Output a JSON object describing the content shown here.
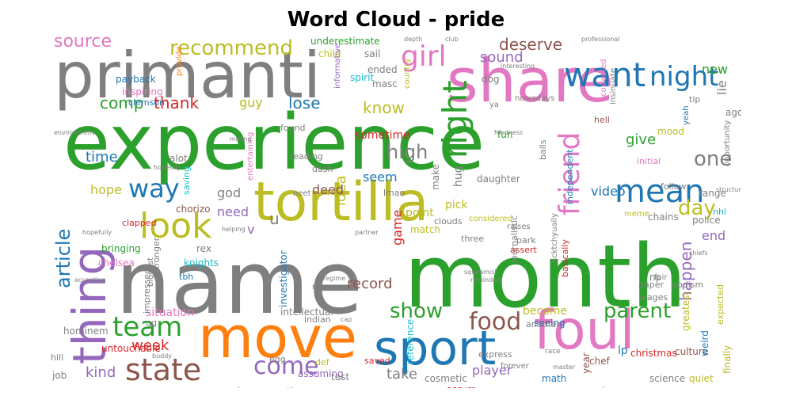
{
  "title": "Word Cloud - pride",
  "palette": {
    "green": "#2ca02c",
    "gray": "#7f7f7f",
    "pink": "#e377c2",
    "olive": "#bcbd22",
    "blue": "#1f77b4",
    "orange": "#ff7f0e",
    "purple": "#9467bd",
    "brown": "#8c564b",
    "cyan": "#17becf",
    "red": "#d62728"
  },
  "words": [
    {
      "text": "experience",
      "color": "green"
    },
    {
      "text": "name",
      "color": "gray"
    },
    {
      "text": "month",
      "color": "green"
    },
    {
      "text": "primanti",
      "color": "gray"
    },
    {
      "text": "share",
      "color": "pink"
    },
    {
      "text": "tortilla",
      "color": "olive"
    },
    {
      "text": "move",
      "color": "orange"
    },
    {
      "text": "sport",
      "color": "blue"
    },
    {
      "text": "foul",
      "color": "pink"
    },
    {
      "text": "thing",
      "color": "purple"
    },
    {
      "text": "look",
      "color": "olive"
    },
    {
      "text": "want",
      "color": "blue"
    },
    {
      "text": "night",
      "color": "blue"
    },
    {
      "text": "girl",
      "color": "pink"
    },
    {
      "text": "mean",
      "color": "blue"
    },
    {
      "text": "state",
      "color": "brown"
    },
    {
      "text": "team",
      "color": "green"
    },
    {
      "text": "way",
      "color": "blue"
    },
    {
      "text": "right",
      "color": "green"
    },
    {
      "text": "food",
      "color": "brown"
    },
    {
      "text": "come",
      "color": "purple"
    },
    {
      "text": "parent",
      "color": "green"
    },
    {
      "text": "friend",
      "color": "pink"
    },
    {
      "text": "recommend",
      "color": "olive"
    },
    {
      "text": "source",
      "color": "pink"
    },
    {
      "text": "article",
      "color": "blue"
    },
    {
      "text": "high",
      "color": "gray"
    },
    {
      "text": "day",
      "color": "olive"
    },
    {
      "text": "show",
      "color": "green"
    },
    {
      "text": "one",
      "color": "gray"
    },
    {
      "text": "week",
      "color": "red"
    },
    {
      "text": "kind",
      "color": "purple"
    },
    {
      "text": "comp",
      "color": "green"
    },
    {
      "text": "thank",
      "color": "red"
    },
    {
      "text": "lose",
      "color": "blue"
    },
    {
      "text": "know",
      "color": "olive"
    },
    {
      "text": "happen",
      "color": "purple"
    },
    {
      "text": "deserve",
      "color": "brown"
    },
    {
      "text": "sound",
      "color": "purple"
    },
    {
      "text": "give",
      "color": "green"
    },
    {
      "text": "time",
      "color": "blue"
    },
    {
      "text": "hope",
      "color": "olive"
    },
    {
      "text": "idea",
      "color": "olive"
    },
    {
      "text": "seem",
      "color": "blue"
    },
    {
      "text": "deed",
      "color": "brown"
    },
    {
      "text": "need",
      "color": "purple"
    },
    {
      "text": "u",
      "color": "gray"
    },
    {
      "text": "v",
      "color": "purple"
    },
    {
      "text": "god",
      "color": "gray"
    },
    {
      "text": "game",
      "color": "red"
    },
    {
      "text": "end",
      "color": "purple"
    },
    {
      "text": "guy",
      "color": "olive"
    },
    {
      "text": "video",
      "color": "blue"
    },
    {
      "text": "record",
      "color": "brown"
    },
    {
      "text": "take",
      "color": "gray"
    },
    {
      "text": "player",
      "color": "purple"
    },
    {
      "text": "situation",
      "color": "pink"
    },
    {
      "text": "new",
      "color": "green"
    },
    {
      "text": "lie",
      "color": "gray"
    },
    {
      "text": "sometime",
      "color": "red"
    },
    {
      "text": "point",
      "color": "olive"
    },
    {
      "text": "pick",
      "color": "olive"
    },
    {
      "text": "make",
      "color": "gray"
    },
    {
      "text": "hug",
      "color": "gray"
    },
    {
      "text": "chorizo",
      "color": "brown"
    },
    {
      "text": "knights",
      "color": "cyan"
    },
    {
      "text": "rex",
      "color": "gray"
    },
    {
      "text": "chelsea",
      "color": "pink"
    },
    {
      "text": "bringing",
      "color": "green"
    },
    {
      "text": "investigator",
      "color": "blue"
    },
    {
      "text": "stronger",
      "color": "gray"
    },
    {
      "text": "tbh",
      "color": "blue"
    },
    {
      "text": "hominem",
      "color": "gray"
    },
    {
      "text": "untouchable",
      "color": "red"
    },
    {
      "text": "impressed",
      "color": "gray"
    },
    {
      "text": "assuming",
      "color": "purple"
    },
    {
      "text": "intellectual",
      "color": "gray"
    },
    {
      "text": "cosmetic",
      "color": "gray"
    },
    {
      "text": "reference",
      "color": "cyan"
    },
    {
      "text": "become",
      "color": "olive"
    },
    {
      "text": "seeing",
      "color": "blue"
    },
    {
      "text": "math",
      "color": "blue"
    },
    {
      "text": "scrum",
      "color": "red"
    },
    {
      "text": "chef",
      "color": "brown"
    },
    {
      "text": "lp",
      "color": "blue"
    },
    {
      "text": "year",
      "color": "brown"
    },
    {
      "text": "quiet",
      "color": "olive"
    },
    {
      "text": "science",
      "color": "gray"
    },
    {
      "text": "culture",
      "color": "brown"
    },
    {
      "text": "personnel",
      "color": "gray"
    },
    {
      "text": "christmas",
      "color": "red"
    },
    {
      "text": "finally",
      "color": "olive"
    },
    {
      "text": "weird",
      "color": "blue"
    },
    {
      "text": "greatest",
      "color": "olive"
    },
    {
      "text": "expected",
      "color": "olive"
    },
    {
      "text": "police",
      "color": "gray"
    },
    {
      "text": "np",
      "color": "gray"
    },
    {
      "text": "paper",
      "color": "gray"
    },
    {
      "text": "wages",
      "color": "gray"
    },
    {
      "text": "fair",
      "color": "gray"
    },
    {
      "text": "godism",
      "color": "gray"
    },
    {
      "text": "chains",
      "color": "gray"
    },
    {
      "text": "meme",
      "color": "olive"
    },
    {
      "text": "range",
      "color": "gray"
    },
    {
      "text": "follow",
      "color": "gray"
    },
    {
      "text": "nhl",
      "color": "cyan"
    },
    {
      "text": "opportunity",
      "color": "gray"
    },
    {
      "text": "mood",
      "color": "olive"
    },
    {
      "text": "initial",
      "color": "pink"
    },
    {
      "text": "ago",
      "color": "gray"
    },
    {
      "text": "tip",
      "color": "gray"
    },
    {
      "text": "yeah",
      "color": "blue"
    },
    {
      "text": "hell",
      "color": "brown"
    },
    {
      "text": "corrected",
      "color": "pink"
    },
    {
      "text": "insinuate",
      "color": "gray"
    },
    {
      "text": "independent",
      "color": "blue"
    },
    {
      "text": "balls",
      "color": "gray"
    },
    {
      "text": "fun",
      "color": "green"
    },
    {
      "text": "daughter",
      "color": "gray"
    },
    {
      "text": "dash",
      "color": "gray"
    },
    {
      "text": "reading",
      "color": "gray"
    },
    {
      "text": "clouds",
      "color": "gray"
    },
    {
      "text": "lmao",
      "color": "gray"
    },
    {
      "text": "considered",
      "color": "olive"
    },
    {
      "text": "raises",
      "color": "gray"
    },
    {
      "text": "park",
      "color": "gray"
    },
    {
      "text": "assert",
      "color": "red"
    },
    {
      "text": "three",
      "color": "gray"
    },
    {
      "text": "match",
      "color": "olive"
    },
    {
      "text": "dog",
      "color": "gray"
    },
    {
      "text": "masc",
      "color": "gray"
    },
    {
      "text": "ended",
      "color": "gray"
    },
    {
      "text": "spirit",
      "color": "cyan"
    },
    {
      "text": "sail",
      "color": "gray"
    },
    {
      "text": "child",
      "color": "olive"
    },
    {
      "text": "underestimate",
      "color": "green"
    },
    {
      "text": "country",
      "color": "olive"
    },
    {
      "text": "nowadays",
      "color": "gray"
    },
    {
      "text": "ya",
      "color": "gray"
    },
    {
      "text": "payback",
      "color": "blue"
    },
    {
      "text": "inspiring",
      "color": "pink"
    },
    {
      "text": "clemson",
      "color": "blue"
    },
    {
      "text": "provide",
      "color": "orange"
    },
    {
      "text": "informative",
      "color": "purple"
    },
    {
      "text": "found",
      "color": "gray"
    },
    {
      "text": "entertaining",
      "color": "pink"
    },
    {
      "text": "alot",
      "color": "gray"
    },
    {
      "text": "saving",
      "color": "cyan"
    },
    {
      "text": "clapped",
      "color": "red"
    },
    {
      "text": "neet",
      "color": "gray"
    },
    {
      "text": "indian",
      "color": "gray"
    },
    {
      "text": "journalistic",
      "color": "gray"
    },
    {
      "text": "acktchyually",
      "color": "gray"
    },
    {
      "text": "basically",
      "color": "red"
    },
    {
      "text": "another",
      "color": "gray"
    },
    {
      "text": "express",
      "color": "gray"
    },
    {
      "text": "saved",
      "color": "red"
    },
    {
      "text": "egg",
      "color": "gray"
    },
    {
      "text": "def",
      "color": "olive"
    },
    {
      "text": "test",
      "color": "gray"
    },
    {
      "text": "actions",
      "color": "gray"
    },
    {
      "text": "always",
      "color": "purple"
    },
    {
      "text": "job",
      "color": "gray"
    },
    {
      "text": "hill",
      "color": "gray"
    },
    {
      "text": "gg",
      "color": "gray"
    },
    {
      "text": "biggest",
      "color": "gray"
    },
    {
      "text": "mom",
      "color": "gray"
    },
    {
      "text": "forever",
      "color": "gray"
    },
    {
      "text": "race",
      "color": "gray"
    },
    {
      "text": "master",
      "color": "gray"
    },
    {
      "text": "depth",
      "color": "gray"
    },
    {
      "text": "club",
      "color": "gray"
    },
    {
      "text": "professional",
      "color": "gray"
    },
    {
      "text": "environment",
      "color": "gray"
    },
    {
      "text": "honestly",
      "color": "gray"
    },
    {
      "text": "mining",
      "color": "gray"
    },
    {
      "text": "hopefully",
      "color": "gray"
    },
    {
      "text": "helping",
      "color": "gray"
    },
    {
      "text": "partner",
      "color": "gray"
    },
    {
      "text": "accepting",
      "color": "gray"
    },
    {
      "text": "regime",
      "color": "gray"
    },
    {
      "text": "squeamish",
      "color": "gray"
    },
    {
      "text": "reminded",
      "color": "gray"
    },
    {
      "text": "interesting",
      "color": "gray"
    },
    {
      "text": "structured",
      "color": "gray"
    },
    {
      "text": "chiefs",
      "color": "gray"
    },
    {
      "text": "buddy",
      "color": "gray"
    },
    {
      "text": "cap",
      "color": "gray"
    },
    {
      "text": "fondness",
      "color": "gray"
    }
  ]
}
